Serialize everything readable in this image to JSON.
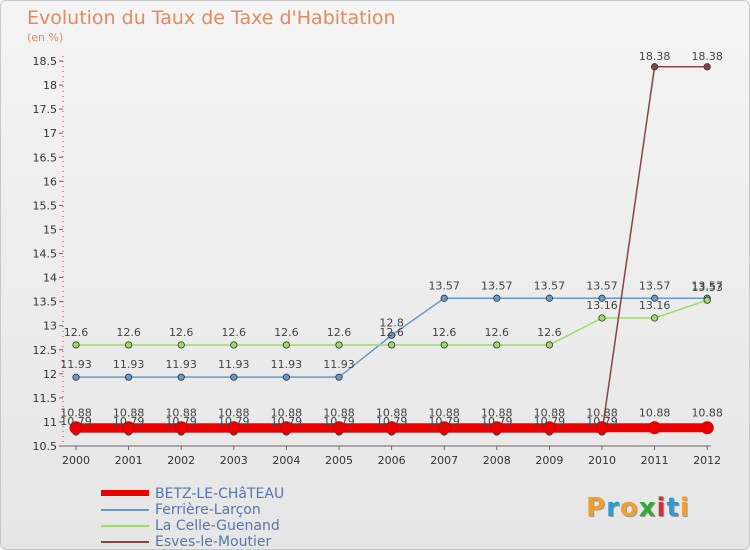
{
  "chart_data": {
    "type": "line",
    "title": "Evolution du Taux de Taxe d'Habitation",
    "ylabel": "(en %)",
    "xlabel": "",
    "categories": [
      "2000",
      "2001",
      "2002",
      "2003",
      "2004",
      "2005",
      "2006",
      "2007",
      "2008",
      "2009",
      "2010",
      "2011",
      "2012"
    ],
    "ylim": [
      10.5,
      18.5
    ],
    "yticks": [
      10.5,
      11,
      11.5,
      12,
      12.5,
      13,
      13.5,
      14,
      14.5,
      15,
      15.5,
      16,
      16.5,
      17,
      17.5,
      18,
      18.5
    ],
    "ytick_labels": [
      "10.5",
      "11",
      "11.5",
      "12",
      "12.5",
      "13",
      "13.5",
      "14",
      "14.5",
      "15",
      "15.5",
      "16",
      "16.5",
      "17",
      "17.5",
      "18",
      "18.5"
    ],
    "series": [
      {
        "name": "BETZ-LE-CHâTEAU",
        "color": "#ee0000",
        "values": [
          10.88,
          10.88,
          10.88,
          10.88,
          10.88,
          10.88,
          10.88,
          10.88,
          10.88,
          10.88,
          10.88,
          10.88,
          10.88
        ],
        "labels": [
          "10.88",
          "10.88",
          "10.88",
          "10.88",
          "10.88",
          "10.88",
          "10.88",
          "10.88",
          "10.88",
          "10.88",
          "10.88",
          "10.88",
          "10.88"
        ]
      },
      {
        "name": "Ferrière-Larçon",
        "color": "#6699cc",
        "values": [
          11.93,
          11.93,
          11.93,
          11.93,
          11.93,
          11.93,
          12.8,
          13.57,
          13.57,
          13.57,
          13.57,
          13.57,
          13.57
        ],
        "labels": [
          "11.93",
          "11.93",
          "11.93",
          "11.93",
          "11.93",
          "11.93",
          "12.8",
          "13.57",
          "13.57",
          "13.57",
          "13.57",
          "13.57",
          "13.57"
        ]
      },
      {
        "name": "La Celle-Guenand",
        "color": "#99dd66",
        "values": [
          12.6,
          12.6,
          12.6,
          12.6,
          12.6,
          12.6,
          12.6,
          12.6,
          12.6,
          12.6,
          13.16,
          13.16,
          13.53
        ],
        "labels": [
          "12.6",
          "12.6",
          "12.6",
          "12.6",
          "12.6",
          "12.6",
          "12.6",
          "12.6",
          "12.6",
          "12.6",
          "13.16",
          "13.16",
          "13.53"
        ]
      },
      {
        "name": "Esves-le-Moutier",
        "color": "#884444",
        "values": [
          10.79,
          10.79,
          10.79,
          10.79,
          10.79,
          10.79,
          10.79,
          10.79,
          10.79,
          10.79,
          10.79,
          18.38,
          18.38
        ],
        "labels": [
          "10.79",
          "10.79",
          "10.79",
          "10.79",
          "10.79",
          "10.79",
          "10.79",
          "10.79",
          "10.79",
          "10.79",
          "10.79",
          "18.38",
          "18.38"
        ]
      }
    ],
    "grid": false,
    "legend_position": "bottom-left"
  },
  "logo": {
    "letters": [
      "P",
      "r",
      "o",
      "x",
      "i",
      "t",
      "i"
    ],
    "colors": [
      "#f0a030",
      "#3399cc",
      "#f0a030",
      "#33aa33",
      "#cc3333",
      "#3399cc",
      "#f0a030"
    ]
  }
}
